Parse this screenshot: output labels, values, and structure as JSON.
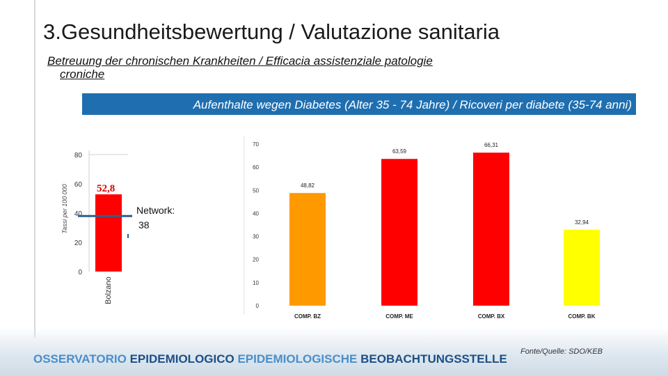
{
  "slide": {
    "title": "3.Gesundheitsbewertung / Valutazione sanitaria",
    "subtitle_line1": "Betreuung der chronischen Krankheiten / Efficacia assistenziale patologie",
    "subtitle_line2": "croniche",
    "banner": "Aufenthalte wegen Diabetes (Alter 35 - 74 Jahre) / Ricoveri per diabete (35-74 anni)",
    "footer_part1": "OSSERVATORIO ",
    "footer_part2": "EPIDEMIOLOGICO ",
    "footer_part3": "EPIDEMIOLOGISCHE ",
    "footer_part4": "BEOBACHTUNGSSTELLE",
    "source": "Fonte/Quelle: SDO/KEB"
  },
  "colors": {
    "banner": "#1f6fb0",
    "bar_red": "#ff0000",
    "bar_orange": "#ff9900",
    "bar_yellow": "#ffff00",
    "network_line": "#2e5f8f"
  },
  "chart_data": [
    {
      "type": "bar",
      "categories": [
        "Bolzano"
      ],
      "values": [
        52.8
      ],
      "value_labels": [
        "52,8"
      ],
      "ylabel": "Tassi per 100 000",
      "ylim": [
        0,
        80
      ],
      "yticks": [
        "0",
        "20",
        "40",
        "60",
        "80"
      ],
      "reference_line": {
        "label": "Network:",
        "value_label": "38",
        "value": 38
      },
      "grid": false
    },
    {
      "type": "bar",
      "categories": [
        "COMP. BZ",
        "COMP. ME",
        "COMP. BX",
        "COMP. BK"
      ],
      "values": [
        48.82,
        63.59,
        66.31,
        32.94
      ],
      "value_labels": [
        "48,82",
        "63,59",
        "66,31",
        "32,94"
      ],
      "bar_colors": [
        "#ff9900",
        "#ff0000",
        "#ff0000",
        "#ffff00"
      ],
      "ylim": [
        0,
        70
      ],
      "yticks": [
        "0",
        "10",
        "20",
        "30",
        "40",
        "50",
        "60",
        "70"
      ],
      "grid": false
    }
  ]
}
